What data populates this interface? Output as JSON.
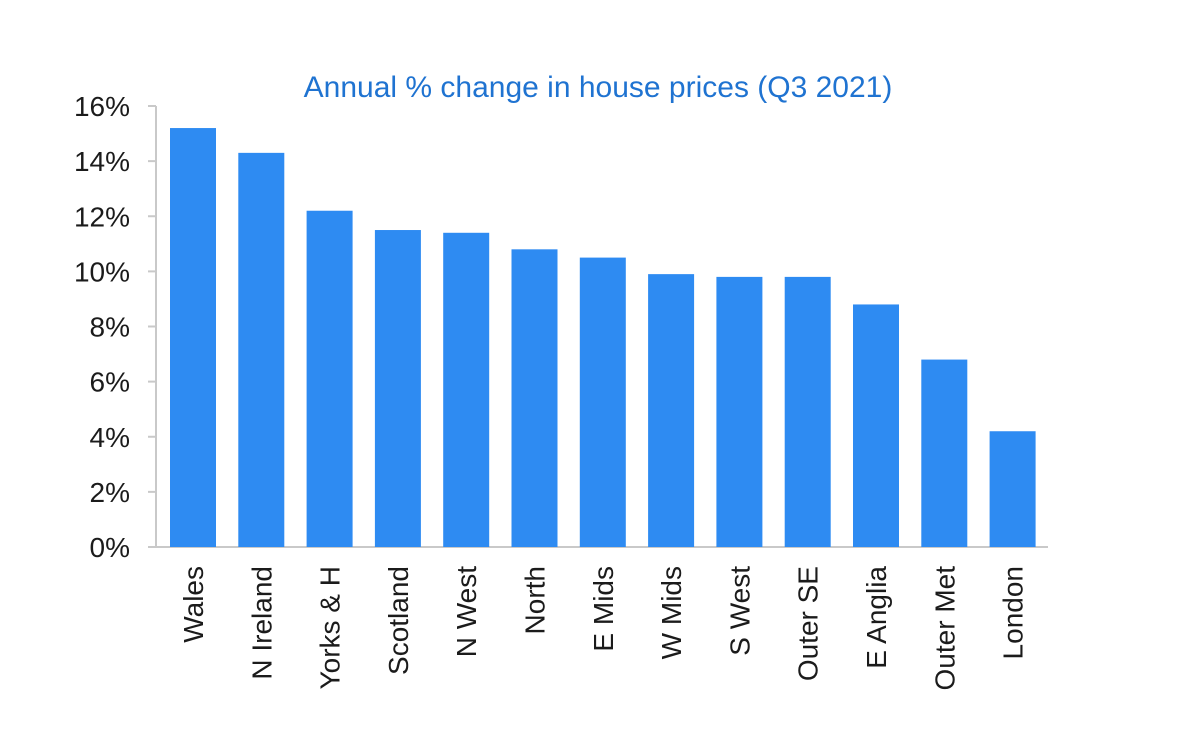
{
  "chart_data": {
    "type": "bar",
    "title": "Annual % change in house prices (Q3 2021)",
    "xlabel": "",
    "ylabel": "",
    "categories": [
      "Wales",
      "N Ireland",
      "Yorks & H",
      "Scotland",
      "N West",
      "North",
      "E Mids",
      "W Mids",
      "S West",
      "Outer SE",
      "E Anglia",
      "Outer Met",
      "London"
    ],
    "values": [
      15.2,
      14.3,
      12.2,
      11.5,
      11.4,
      10.8,
      10.5,
      9.9,
      9.8,
      9.8,
      8.8,
      6.8,
      4.2
    ],
    "ylim": [
      0,
      16
    ],
    "yticks": [
      "0%",
      "2%",
      "4%",
      "6%",
      "8%",
      "10%",
      "12%",
      "14%",
      "16%"
    ],
    "grid": false,
    "legend": "none",
    "colors": {
      "bar": "#2e8bf2",
      "title": "#1f73d1",
      "axis": "#c9c9c9",
      "text": "#1b1b1b"
    }
  }
}
